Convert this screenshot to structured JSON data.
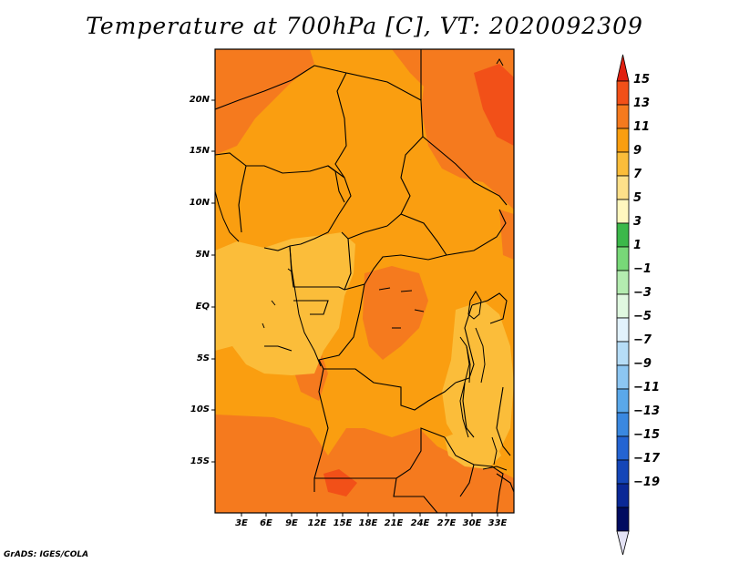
{
  "title": "Temperature at 700hPa [C], VT: 2020092309",
  "credit": "GrADS: IGES/COLA",
  "lat_labels": [
    "20N",
    "15N",
    "10N",
    "5N",
    "EQ",
    "5S",
    "10S",
    "15S"
  ],
  "lon_labels": [
    "3E",
    "6E",
    "9E",
    "12E",
    "15E",
    "18E",
    "21E",
    "24E",
    "27E",
    "30E",
    "33E"
  ],
  "colorbar": {
    "labels": [
      "15",
      "13",
      "11",
      "9",
      "7",
      "5",
      "3",
      "1",
      "−1",
      "−3",
      "−5",
      "−7",
      "−9",
      "−11",
      "−13",
      "−15",
      "−17",
      "−19"
    ],
    "colors": [
      "#e02010",
      "#f25018",
      "#f57a1e",
      "#fa9e10",
      "#fbbd3a",
      "#fde08a",
      "#fff7bf",
      "#3cb84a",
      "#78d878",
      "#b4ecb0",
      "#e0f8e0",
      "#e2f2fc",
      "#b6ddf7",
      "#8cc6f2",
      "#5aa8ea",
      "#3a88e0",
      "#2464d2",
      "#1446b8",
      "#0a2896",
      "#000c60",
      "#e3e2f4"
    ]
  },
  "field_colors": {
    "t7": "#fbbd3a",
    "t9": "#fa9e10",
    "t11": "#f57a1e",
    "t13": "#f25018",
    "t15": "#e02010"
  }
}
